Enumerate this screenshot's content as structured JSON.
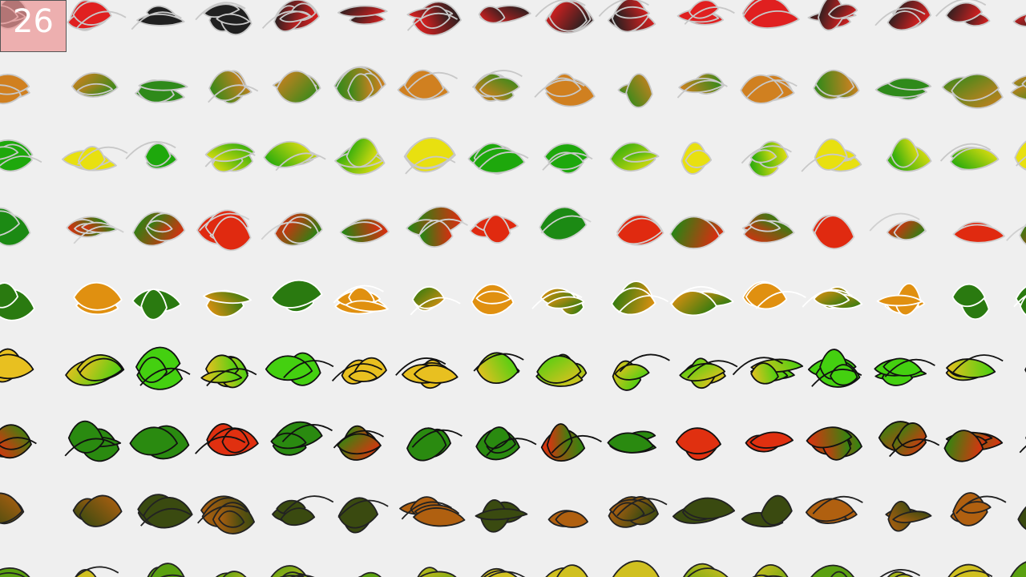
{
  "counter": "26",
  "grid": {
    "rows": 9,
    "cols": 16
  },
  "row_styles": [
    {
      "start": "#202020",
      "end": "#e02020",
      "stroke": "#c8c8c8"
    },
    {
      "start": "#2f8a1a",
      "end": "#d08020",
      "stroke": "#c8c8c8"
    },
    {
      "start": "#1ea80c",
      "end": "#e8e010",
      "stroke": "#c8c8c8"
    },
    {
      "start": "#1c8a14",
      "end": "#e02a10",
      "stroke": "#d0d0d0"
    },
    {
      "start": "#2a7a10",
      "end": "#e09010",
      "stroke": "#ffffff"
    },
    {
      "start": "#44d010",
      "end": "#e8c020",
      "stroke": "#111111"
    },
    {
      "start": "#2a8a10",
      "end": "#e03010",
      "stroke": "#111111"
    },
    {
      "start": "#3a4a10",
      "end": "#b06010",
      "stroke": "#222222"
    },
    {
      "start": "#5aa010",
      "end": "#d0c020",
      "stroke": "#222222"
    }
  ]
}
